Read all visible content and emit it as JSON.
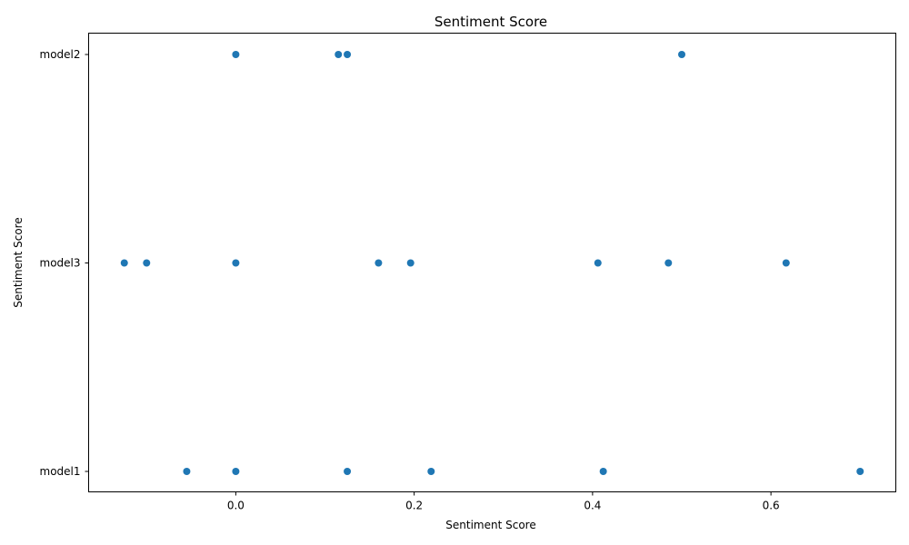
{
  "chart_data": {
    "type": "scatter",
    "title": "Sentiment Score",
    "xlabel": "Sentiment Score",
    "ylabel": "Sentiment Score",
    "xlim": [
      -0.165,
      0.74
    ],
    "x_ticks": [
      0.0,
      0.2,
      0.4,
      0.6
    ],
    "x_tick_labels": [
      "0.0",
      "0.2",
      "0.4",
      "0.6"
    ],
    "y_categories": [
      "model2",
      "model3",
      "model1"
    ],
    "grid": false,
    "color": "#1f77b4",
    "points": [
      {
        "y": "model2",
        "x": 0.0
      },
      {
        "y": "model2",
        "x": 0.115
      },
      {
        "y": "model2",
        "x": 0.125
      },
      {
        "y": "model2",
        "x": 0.5
      },
      {
        "y": "model3",
        "x": -0.125
      },
      {
        "y": "model3",
        "x": -0.1
      },
      {
        "y": "model3",
        "x": 0.0
      },
      {
        "y": "model3",
        "x": 0.16
      },
      {
        "y": "model3",
        "x": 0.196
      },
      {
        "y": "model3",
        "x": 0.406
      },
      {
        "y": "model3",
        "x": 0.485
      },
      {
        "y": "model3",
        "x": 0.617
      },
      {
        "y": "model1",
        "x": -0.055
      },
      {
        "y": "model1",
        "x": 0.0
      },
      {
        "y": "model1",
        "x": 0.125
      },
      {
        "y": "model1",
        "x": 0.219
      },
      {
        "y": "model1",
        "x": 0.412
      },
      {
        "y": "model1",
        "x": 0.7
      }
    ]
  }
}
